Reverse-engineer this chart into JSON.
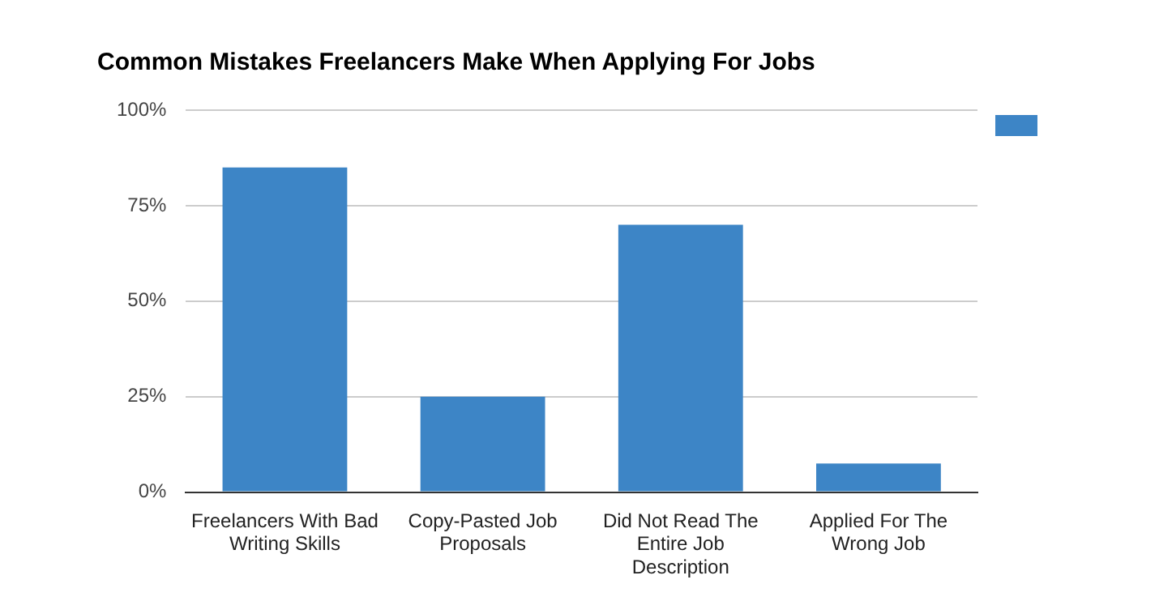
{
  "chart_data": {
    "type": "bar",
    "title": "Common Mistakes Freelancers Make When Applying For Jobs",
    "categories": [
      "Freelancers With Bad Writing Skills",
      "Copy-Pasted Job Proposals",
      "Did Not Read The Entire Job Description",
      "Applied For The Wrong Job"
    ],
    "series": [
      {
        "color": "#3d85c6",
        "values": [
          85,
          25,
          70,
          7.5
        ]
      }
    ],
    "ylim": [
      0,
      100
    ],
    "yticks": [
      {
        "value": 0,
        "label": "0%"
      },
      {
        "value": 25,
        "label": "25%"
      },
      {
        "value": 50,
        "label": "50%"
      },
      {
        "value": 75,
        "label": "75%"
      },
      {
        "value": 100,
        "label": "100%"
      }
    ],
    "grid": "y"
  }
}
